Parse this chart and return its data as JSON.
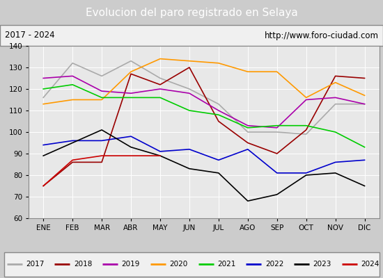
{
  "title": "Evolucion del paro registrado en Selaya",
  "title_bgcolor": "#4d9ecc",
  "subtitle_left": "2017 - 2024",
  "subtitle_right": "http://www.foro-ciudad.com",
  "xlabel_months": [
    "ENE",
    "FEB",
    "MAR",
    "ABR",
    "MAY",
    "JUN",
    "JUL",
    "AGO",
    "SEP",
    "OCT",
    "NOV",
    "DIC"
  ],
  "ylim": [
    60,
    140
  ],
  "yticks": [
    60,
    70,
    80,
    90,
    100,
    110,
    120,
    130,
    140
  ],
  "series": {
    "2017": {
      "color": "#aaaaaa",
      "values": [
        116,
        132,
        126,
        133,
        125,
        120,
        113,
        100,
        100,
        99,
        113,
        113
      ]
    },
    "2018": {
      "color": "#990000",
      "values": [
        75,
        86,
        86,
        127,
        122,
        130,
        105,
        95,
        90,
        101,
        126,
        125
      ]
    },
    "2019": {
      "color": "#aa00aa",
      "values": [
        125,
        126,
        119,
        118,
        120,
        118,
        110,
        103,
        102,
        115,
        116,
        113
      ]
    },
    "2020": {
      "color": "#ff9900",
      "values": [
        113,
        115,
        115,
        128,
        134,
        133,
        132,
        128,
        128,
        116,
        123,
        117
      ]
    },
    "2021": {
      "color": "#00cc00",
      "values": [
        120,
        122,
        116,
        116,
        116,
        110,
        108,
        102,
        103,
        103,
        100,
        93
      ]
    },
    "2022": {
      "color": "#0000cc",
      "values": [
        94,
        96,
        96,
        98,
        91,
        92,
        87,
        92,
        81,
        81,
        86,
        87
      ]
    },
    "2023": {
      "color": "#000000",
      "values": [
        89,
        95,
        101,
        93,
        89,
        83,
        81,
        68,
        71,
        80,
        81,
        75
      ]
    },
    "2024": {
      "color": "#cc0000",
      "values": [
        75,
        87,
        89,
        89,
        89,
        null,
        null,
        null,
        null,
        null,
        null,
        null
      ]
    }
  },
  "bg_plot": "#e8e8e8",
  "bg_outer": "#cccccc",
  "grid_color": "#ffffff",
  "legend_bg": "#f0f0f0",
  "subtitle_bg": "#f0f0f0"
}
